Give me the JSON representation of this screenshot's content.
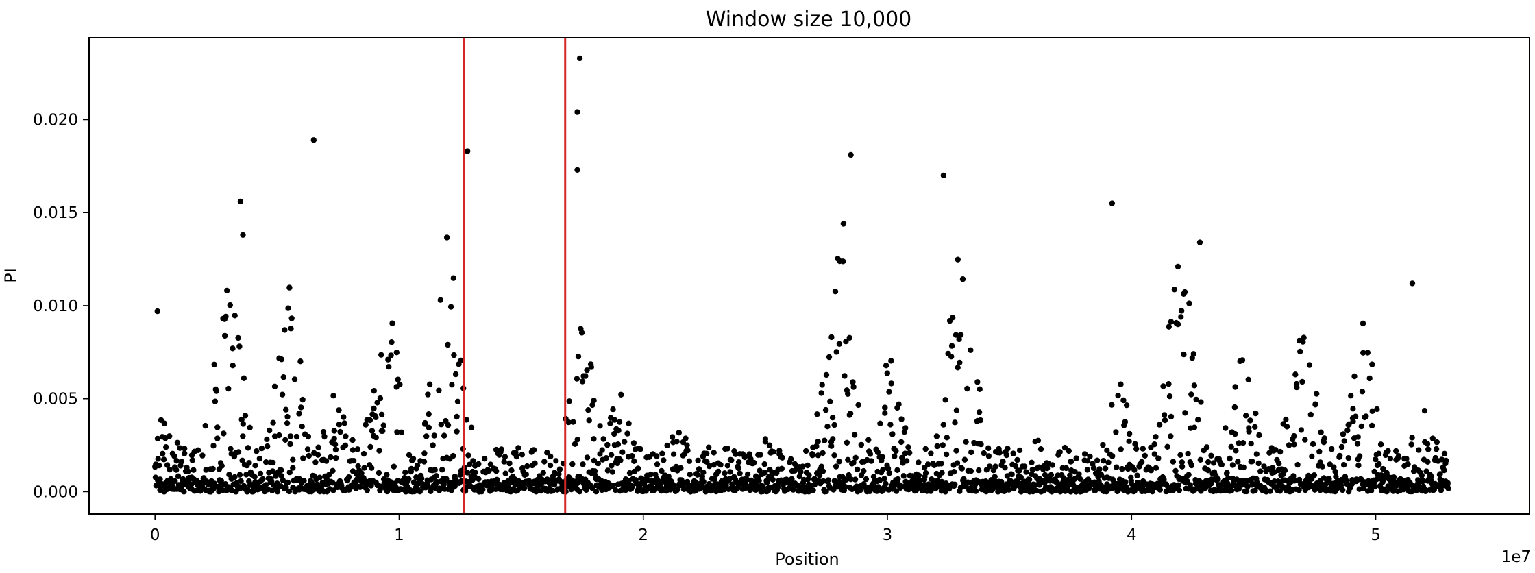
{
  "chart_data": {
    "type": "scatter",
    "title": "Window size 10,000",
    "xlabel": "Position",
    "ylabel": "PI",
    "x_multiplier_label": "1e7",
    "x_tick_labels": [
      "0",
      "1",
      "2",
      "3",
      "4",
      "5"
    ],
    "x_ticks": [
      0,
      1,
      2,
      3,
      4,
      5
    ],
    "y_tick_labels": [
      "0.000",
      "0.005",
      "0.010",
      "0.015",
      "0.020"
    ],
    "y_ticks": [
      0.0,
      0.005,
      0.01,
      0.015,
      0.02
    ],
    "xlim": [
      -0.27,
      5.63
    ],
    "ylim": [
      -0.0012,
      0.0244
    ],
    "grid": false,
    "point_color": "#000000",
    "vline_color": "#d62728",
    "vlines_x": [
      1.265,
      1.68
    ],
    "x_range_of_windows": [
      0,
      5.3
    ],
    "peak_points": [
      {
        "x": 0.01,
        "y": 0.0097
      },
      {
        "x": 0.35,
        "y": 0.0156
      },
      {
        "x": 0.36,
        "y": 0.0138
      },
      {
        "x": 0.65,
        "y": 0.0189
      },
      {
        "x": 1.28,
        "y": 0.0183
      },
      {
        "x": 1.74,
        "y": 0.0233
      },
      {
        "x": 1.73,
        "y": 0.0204
      },
      {
        "x": 1.73,
        "y": 0.0173
      },
      {
        "x": 2.85,
        "y": 0.0181
      },
      {
        "x": 2.82,
        "y": 0.0144
      },
      {
        "x": 3.23,
        "y": 0.017
      },
      {
        "x": 3.92,
        "y": 0.0155
      },
      {
        "x": 4.28,
        "y": 0.0134
      },
      {
        "x": 4.19,
        "y": 0.0121
      },
      {
        "x": 5.15,
        "y": 0.0112
      }
    ]
  }
}
